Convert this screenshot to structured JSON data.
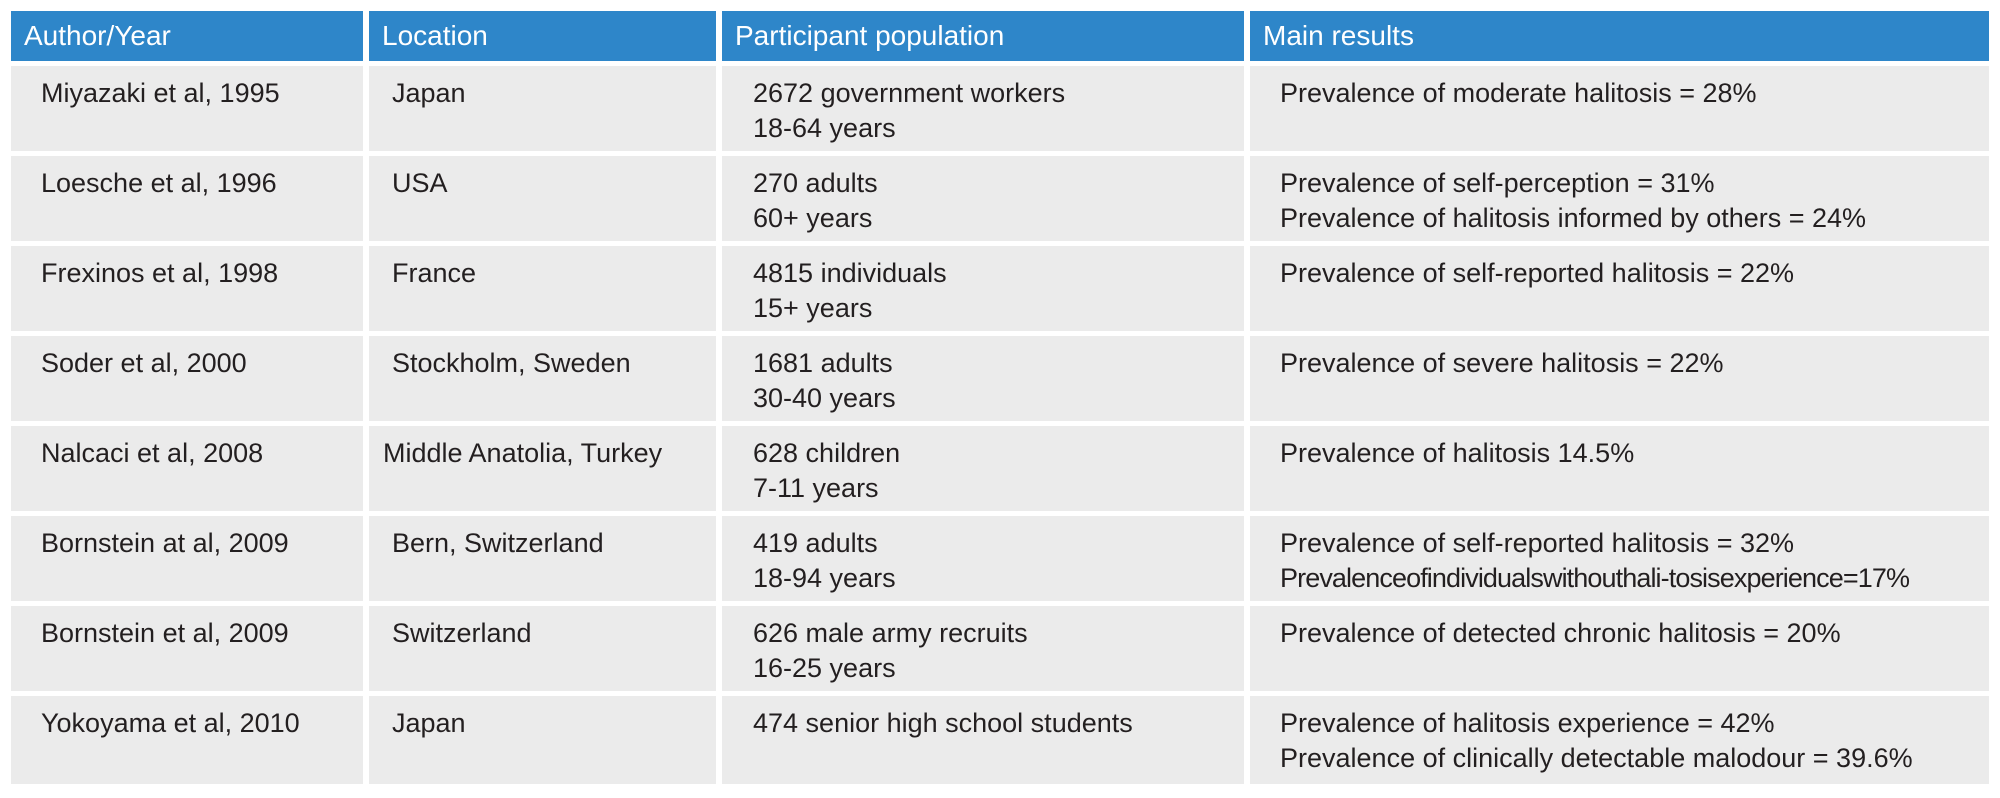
{
  "headers": [
    "Author/Year",
    "Location",
    "Participant population",
    "Main results"
  ],
  "rows": [
    {
      "author": "Miyazaki et al,  1995",
      "location": "Japan",
      "population": [
        "2672 government workers",
        "18-64 years"
      ],
      "results": [
        "Prevalence of moderate halitosis = 28%"
      ]
    },
    {
      "author": "Loesche et al, 1996",
      "location": "USA",
      "population": [
        "270 adults",
        "60+ years"
      ],
      "results": [
        "Prevalence of self-perception = 31%",
        "Prevalence of halitosis informed by others = 24%"
      ]
    },
    {
      "author": "Frexinos et al,  1998",
      "location": "France",
      "population": [
        "4815 individuals",
        "15+ years"
      ],
      "results": [
        "Prevalence of self-reported halitosis = 22%"
      ]
    },
    {
      "author": "Soder et al, 2000",
      "location": "Stockholm, Sweden",
      "population": [
        "1681 adults",
        "30-40 years"
      ],
      "results": [
        "Prevalence of severe halitosis = 22%"
      ]
    },
    {
      "author": "Nalcaci et al, 2008",
      "location": "Middle Anatolia, Turkey",
      "population": [
        "628 children",
        "7-11 years"
      ],
      "results": [
        "Prevalence of halitosis 14.5%"
      ]
    },
    {
      "author": "Bornstein at al, 2009",
      "location": "Bern, Switzerland",
      "population": [
        "419 adults",
        "18-94 years"
      ],
      "results": [
        "Prevalence of self-reported halitosis = 32%",
        "Prevalenceofindividualswithouthali-tosisexperience=17%"
      ]
    },
    {
      "author": "Bornstein et al, 2009",
      "location": "Switzerland",
      "population": [
        "626 male army recruits",
        "16-25 years"
      ],
      "results": [
        "Prevalence of detected chronic halitosis = 20%"
      ]
    },
    {
      "author": "Yokoyama et al, 2010",
      "location": "Japan",
      "population": [
        "474 senior high school students"
      ],
      "results": [
        "Prevalence of halitosis experience = 42%",
        "Prevalence of clinically detectable malodour = 39.6%"
      ]
    }
  ]
}
